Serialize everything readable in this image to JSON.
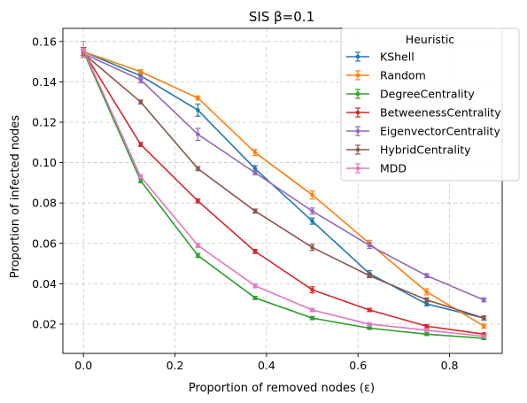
{
  "chart_data": {
    "type": "line",
    "title": "SIS β=0.1",
    "xlabel": "Proportion of removed nodes (ε)",
    "ylabel": "Proportion of infected nodes",
    "xlim": [
      -0.045,
      0.915
    ],
    "ylim": [
      0.0055,
      0.1665
    ],
    "xticks": [
      0.0,
      0.2,
      0.4,
      0.6,
      0.8
    ],
    "xtick_labels": [
      "0.0",
      "0.2",
      "0.4",
      "0.6",
      "0.8"
    ],
    "yticks": [
      0.02,
      0.04,
      0.06,
      0.08,
      0.1,
      0.12,
      0.14,
      0.16
    ],
    "ytick_labels": [
      "0.02",
      "0.04",
      "0.06",
      "0.08",
      "0.10",
      "0.12",
      "0.14",
      "0.16"
    ],
    "grid": true,
    "legend_title": "Heuristic",
    "legend_position": "upper-right",
    "x": [
      0.0,
      0.125,
      0.25,
      0.375,
      0.5,
      0.625,
      0.75,
      0.875
    ],
    "series": [
      {
        "name": "KShell",
        "color": "#1f77b4",
        "values": [
          0.155,
          0.143,
          0.126,
          0.097,
          0.071,
          0.045,
          0.03,
          0.023
        ],
        "errors": [
          0.002,
          0.0015,
          0.003,
          0.0015,
          0.0015,
          0.0015,
          0.001,
          0.001
        ]
      },
      {
        "name": "Random",
        "color": "#ff7f0e",
        "values": [
          0.155,
          0.145,
          0.132,
          0.105,
          0.084,
          0.06,
          0.036,
          0.019
        ],
        "errors": [
          0.002,
          0.001,
          0.001,
          0.0015,
          0.002,
          0.0015,
          0.0015,
          0.001
        ]
      },
      {
        "name": "DegreeCentrality",
        "color": "#2ca02c",
        "values": [
          0.155,
          0.091,
          0.054,
          0.033,
          0.023,
          0.018,
          0.015,
          0.013
        ],
        "errors": [
          0.002,
          0.001,
          0.001,
          0.0008,
          0.0008,
          0.0006,
          0.0006,
          0.0006
        ]
      },
      {
        "name": "BetweenessCentrality",
        "color": "#d62728",
        "values": [
          0.155,
          0.109,
          0.081,
          0.056,
          0.037,
          0.027,
          0.019,
          0.015
        ],
        "errors": [
          0.002,
          0.001,
          0.001,
          0.001,
          0.0015,
          0.0008,
          0.0008,
          0.0006
        ]
      },
      {
        "name": "EigenvectorCentrality",
        "color": "#9467bd",
        "values": [
          0.154,
          0.141,
          0.114,
          0.095,
          0.076,
          0.059,
          0.044,
          0.032
        ],
        "errors": [
          0.002,
          0.0015,
          0.003,
          0.001,
          0.0015,
          0.0015,
          0.001,
          0.001
        ]
      },
      {
        "name": "HybridCentrality",
        "color": "#8c564b",
        "values": [
          0.154,
          0.13,
          0.097,
          0.076,
          0.058,
          0.044,
          0.032,
          0.023
        ],
        "errors": [
          0.002,
          0.001,
          0.001,
          0.001,
          0.0015,
          0.001,
          0.001,
          0.001
        ]
      },
      {
        "name": "MDD",
        "color": "#e377c2",
        "values": [
          0.156,
          0.093,
          0.059,
          0.039,
          0.027,
          0.02,
          0.017,
          0.014
        ],
        "errors": [
          0.004,
          0.001,
          0.001,
          0.001,
          0.0008,
          0.0006,
          0.0006,
          0.0006
        ]
      }
    ]
  }
}
